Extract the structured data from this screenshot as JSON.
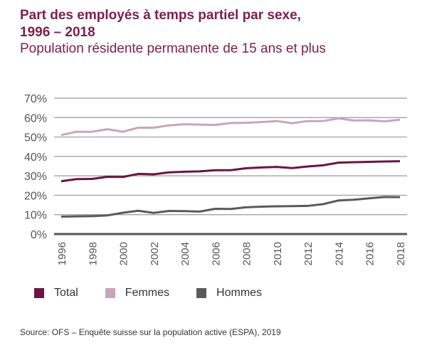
{
  "chart_data": {
    "type": "line",
    "title": "Part des employés à temps partiel par sexe,",
    "title_line2": "1996 – 2018",
    "subtitle": "Population résidente permanente de 15 ans et plus",
    "x": [
      1996,
      1997,
      1998,
      1999,
      2000,
      2001,
      2002,
      2003,
      2004,
      2005,
      2006,
      2007,
      2008,
      2009,
      2010,
      2011,
      2012,
      2013,
      2014,
      2015,
      2016,
      2017,
      2018
    ],
    "xticks": [
      "1996",
      "1998",
      "2000",
      "2002",
      "2004",
      "2006",
      "2008",
      "2010",
      "2012",
      "2014",
      "2016",
      "2018"
    ],
    "yticks": [
      "0%",
      "10%",
      "20%",
      "30%",
      "40%",
      "50%",
      "60%",
      "70%"
    ],
    "ylim": [
      0,
      70
    ],
    "grid": true,
    "legend_position": "bottom",
    "series": [
      {
        "name": "Total",
        "color": "#6b1540",
        "values": [
          27.2,
          28.3,
          28.4,
          29.5,
          29.4,
          31,
          30.8,
          31.8,
          32.1,
          32.3,
          32.9,
          32.9,
          33.9,
          34.3,
          34.6,
          34,
          34.8,
          35.4,
          36.8,
          37,
          37.2,
          37.4,
          37.5
        ]
      },
      {
        "name": "Femmes",
        "color": "#c9a5b9",
        "values": [
          51,
          52.7,
          52.7,
          54,
          52.7,
          54.8,
          54.8,
          56,
          56.6,
          56.4,
          56.2,
          57.2,
          57.3,
          57.7,
          58.2,
          57.1,
          58.2,
          58.2,
          59.6,
          58.5,
          58.6,
          58.1,
          58.9
        ]
      },
      {
        "name": "Hommes",
        "color": "#5a5a5a",
        "values": [
          9,
          9.1,
          9.2,
          9.6,
          11,
          12,
          10.9,
          11.9,
          11.8,
          11.6,
          13,
          12.9,
          13.8,
          14.1,
          14.3,
          14.4,
          14.5,
          15.4,
          17.3,
          17.7,
          18.4,
          19.1,
          19
        ]
      }
    ],
    "source": "Source: OFS – Enquête suisse sur la population active (ESPA), 2019"
  }
}
